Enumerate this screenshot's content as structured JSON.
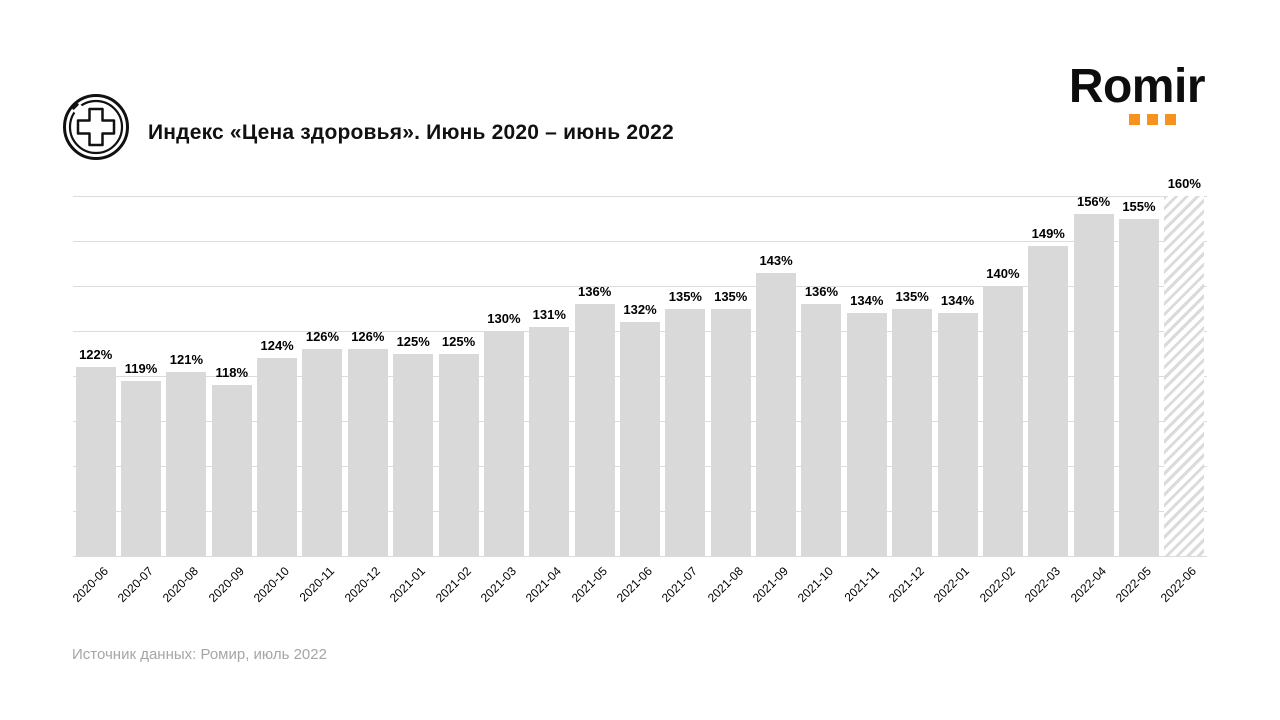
{
  "header": {
    "title": "Индекс «Цена здоровья». Июнь 2020 – июнь 2022",
    "logo_text": "Romir",
    "icon": "medical-cross-circle-icon"
  },
  "footer": {
    "source": "Источник данных: Ромир, июль 2022"
  },
  "colors": {
    "background": "#ffffff",
    "bar_fill": "#d9d9d9",
    "gridline": "#dcdcdc",
    "value_label": "#000000",
    "axis_label": "#000000",
    "source_text": "#a6a6a6",
    "logo_text": "#0d0d0d",
    "logo_accent": "#f6921e"
  },
  "chart_data": {
    "type": "bar",
    "title": "Индекс «Цена здоровья». Июнь 2020 – июнь 2022",
    "categories": [
      "2020-06",
      "2020-07",
      "2020-08",
      "2020-09",
      "2020-10",
      "2020-11",
      "2020-12",
      "2021-01",
      "2021-02",
      "2021-03",
      "2021-04",
      "2021-05",
      "2021-06",
      "2021-07",
      "2021-08",
      "2021-09",
      "2021-10",
      "2021-11",
      "2021-12",
      "2022-01",
      "2022-02",
      "2022-03",
      "2022-04",
      "2022-05",
      "2022-06"
    ],
    "values": [
      122,
      119,
      121,
      118,
      124,
      126,
      126,
      125,
      125,
      130,
      131,
      136,
      132,
      135,
      135,
      143,
      136,
      134,
      135,
      134,
      140,
      149,
      156,
      155,
      160
    ],
    "value_suffix": "%",
    "ylim": [
      80,
      160
    ],
    "gridline_step": 10,
    "grid": true,
    "legend": false,
    "bar_color": "#d9d9d9",
    "last_bar_style": "diagonal-hatch",
    "xlabel": "",
    "ylabel": ""
  }
}
